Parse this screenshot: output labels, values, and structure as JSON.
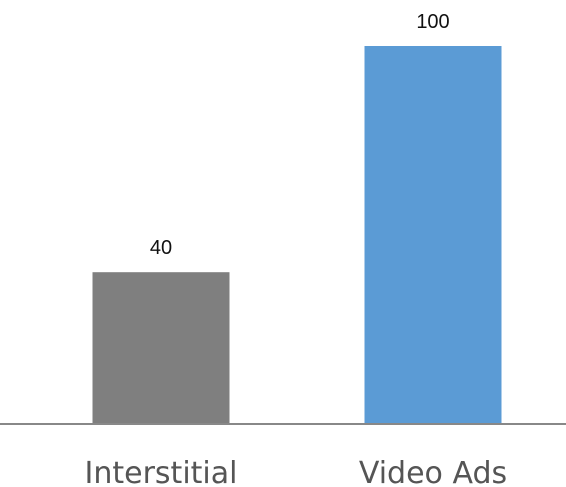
{
  "chart_data": {
    "type": "bar",
    "categories": [
      "Interstitial",
      "Video Ads"
    ],
    "values": [
      40,
      100
    ],
    "data_labels": [
      "40",
      "100"
    ],
    "ylim": [
      0,
      100
    ],
    "grid": false,
    "colors": [
      "#7f7f7f",
      "#5b9bd5"
    ],
    "axis_color": "#888888"
  }
}
